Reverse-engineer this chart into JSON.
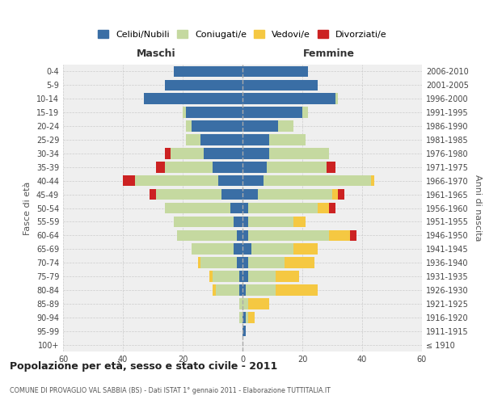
{
  "age_groups": [
    "100+",
    "95-99",
    "90-94",
    "85-89",
    "80-84",
    "75-79",
    "70-74",
    "65-69",
    "60-64",
    "55-59",
    "50-54",
    "45-49",
    "40-44",
    "35-39",
    "30-34",
    "25-29",
    "20-24",
    "15-19",
    "10-14",
    "5-9",
    "0-4"
  ],
  "birth_years": [
    "≤ 1910",
    "1911-1915",
    "1916-1920",
    "1921-1925",
    "1926-1930",
    "1931-1935",
    "1936-1940",
    "1941-1945",
    "1946-1950",
    "1951-1955",
    "1956-1960",
    "1961-1965",
    "1966-1970",
    "1971-1975",
    "1976-1980",
    "1981-1985",
    "1986-1990",
    "1991-1995",
    "1996-2000",
    "2001-2005",
    "2006-2010"
  ],
  "male": {
    "celibe": [
      0,
      0,
      0,
      0,
      1,
      1,
      2,
      3,
      2,
      3,
      4,
      7,
      8,
      10,
      13,
      14,
      17,
      19,
      33,
      26,
      23
    ],
    "coniugato": [
      0,
      0,
      1,
      1,
      8,
      9,
      12,
      14,
      20,
      20,
      22,
      22,
      28,
      16,
      11,
      5,
      2,
      1,
      0,
      0,
      0
    ],
    "vedovo": [
      0,
      0,
      0,
      0,
      1,
      1,
      1,
      0,
      0,
      0,
      0,
      0,
      0,
      0,
      0,
      0,
      0,
      0,
      0,
      0,
      0
    ],
    "divorziato": [
      0,
      0,
      0,
      0,
      0,
      0,
      0,
      0,
      0,
      0,
      0,
      2,
      4,
      3,
      2,
      0,
      0,
      0,
      0,
      0,
      0
    ]
  },
  "female": {
    "nubile": [
      0,
      1,
      1,
      0,
      1,
      2,
      2,
      3,
      2,
      2,
      2,
      5,
      7,
      8,
      9,
      9,
      12,
      20,
      31,
      25,
      22
    ],
    "coniugata": [
      0,
      0,
      1,
      2,
      10,
      9,
      12,
      14,
      27,
      15,
      23,
      25,
      36,
      20,
      20,
      12,
      5,
      2,
      1,
      0,
      0
    ],
    "vedova": [
      0,
      0,
      2,
      7,
      14,
      8,
      10,
      8,
      7,
      4,
      4,
      2,
      1,
      0,
      0,
      0,
      0,
      0,
      0,
      0,
      0
    ],
    "divorziata": [
      0,
      0,
      0,
      0,
      0,
      0,
      0,
      0,
      2,
      0,
      2,
      2,
      0,
      3,
      0,
      0,
      0,
      0,
      0,
      0,
      0
    ]
  },
  "colors": {
    "celibe": "#3a6ea5",
    "coniugato": "#c5d9a0",
    "vedovo": "#f5c842",
    "divorziato": "#cc2222"
  },
  "xlim": 60,
  "title": "Popolazione per età, sesso e stato civile - 2011",
  "subtitle": "COMUNE DI PROVAGLIO VAL SABBIA (BS) - Dati ISTAT 1° gennaio 2011 - Elaborazione TUTTITALIA.IT",
  "ylabel_left": "Fasce di età",
  "ylabel_right": "Anni di nascita",
  "legend_labels": [
    "Celibi/Nubili",
    "Coniugati/e",
    "Vedovi/e",
    "Divorziati/e"
  ],
  "bg_color": "#efefef",
  "grid_color": "#cccccc"
}
